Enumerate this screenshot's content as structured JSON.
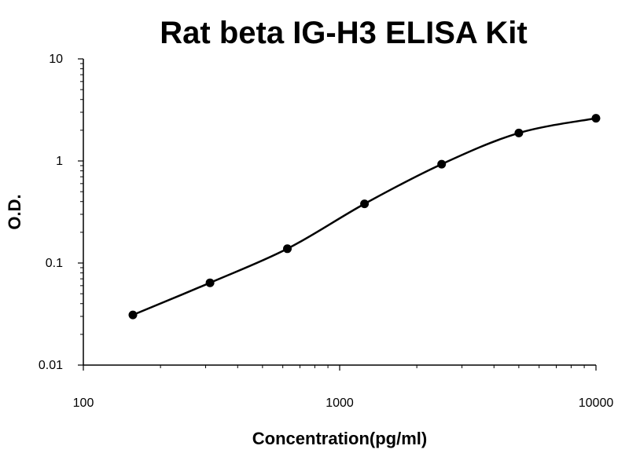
{
  "chart_data": {
    "type": "scatter",
    "title": "Rat beta IG-H3 ELISA Kit",
    "xlabel": "Concentration(pg/ml)",
    "ylabel": "O.D.",
    "x_scale": "log",
    "y_scale": "log",
    "xlim": [
      100,
      10000
    ],
    "ylim": [
      0.01,
      10
    ],
    "x_ticks": [
      "100",
      "1000",
      "10000"
    ],
    "y_ticks": [
      "0.01",
      "0.1",
      "1",
      "10"
    ],
    "grid": false,
    "series": [
      {
        "x": [
          156,
          312,
          625,
          1250,
          2500,
          5000,
          10000
        ],
        "y": [
          0.031,
          0.064,
          0.138,
          0.38,
          0.93,
          1.88,
          2.62
        ],
        "color": "#000000"
      }
    ]
  }
}
